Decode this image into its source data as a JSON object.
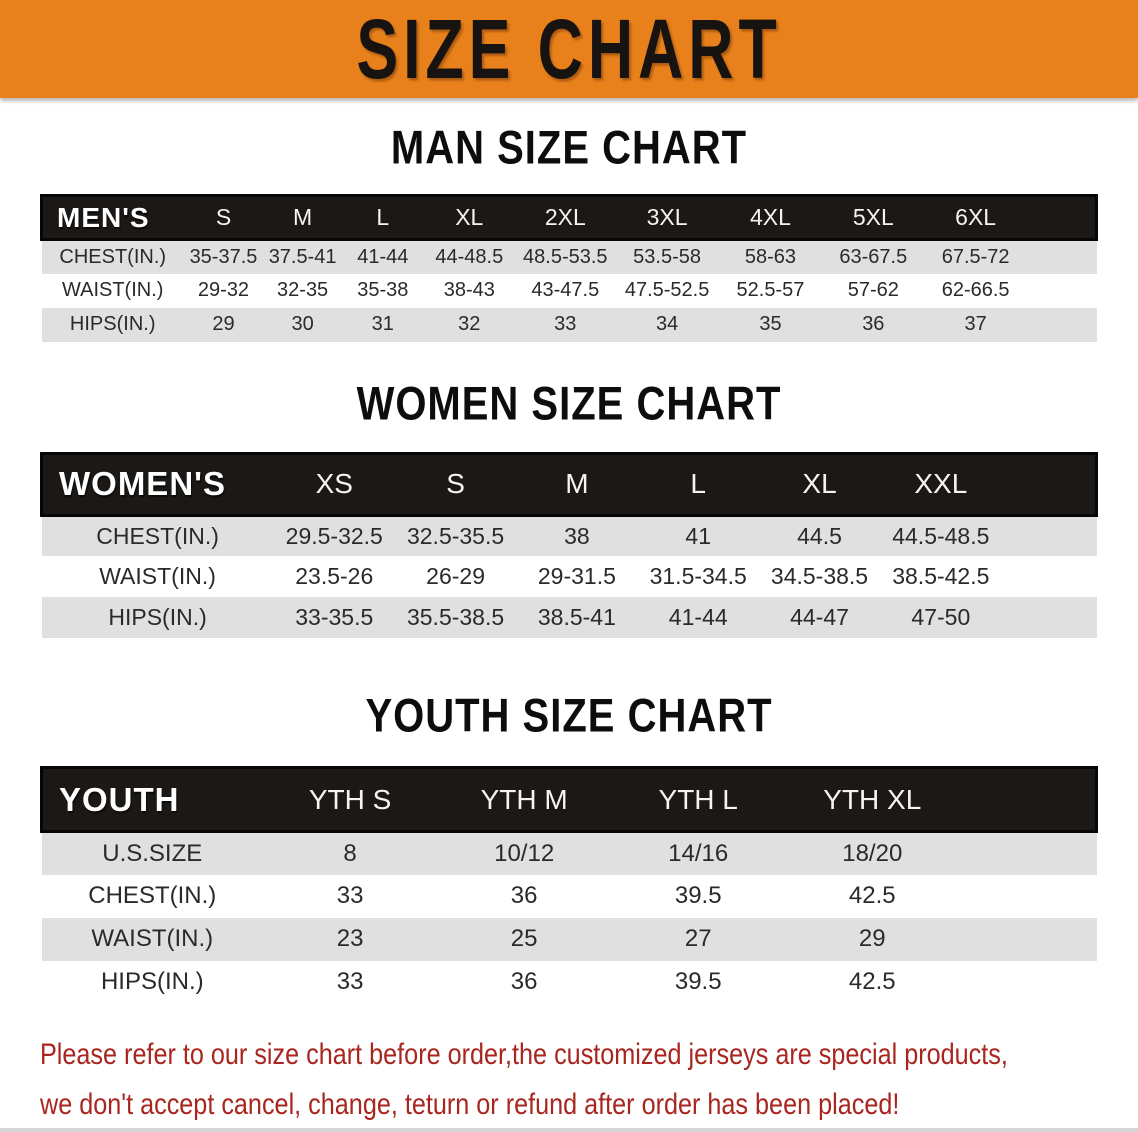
{
  "banner": {
    "title": "SIZE CHART",
    "bg_color": "#E8811B",
    "text_color": "#171310"
  },
  "sections": [
    {
      "heading": "MAN SIZE CHART",
      "table": {
        "header_label": "MEN'S",
        "columns": [
          "S",
          "M",
          "L",
          "XL",
          "2XL",
          "3XL",
          "4XL",
          "5XL",
          "6XL"
        ],
        "rows": [
          {
            "label": "CHEST(IN.)",
            "values": [
              "35-37.5",
              "37.5-41",
              "41-44",
              "44-48.5",
              "48.5-53.5",
              "53.5-58",
              "58-63",
              "63-67.5",
              "67.5-72"
            ]
          },
          {
            "label": "WAIST(IN.)",
            "values": [
              "29-32",
              "32-35",
              "35-38",
              "38-43",
              "43-47.5",
              "47.5-52.5",
              "52.5-57",
              "57-62",
              "62-66.5"
            ]
          },
          {
            "label": "HIPS(IN.)",
            "values": [
              "29",
              "30",
              "31",
              "32",
              "33",
              "34",
              "35",
              "36",
              "37"
            ]
          }
        ]
      }
    },
    {
      "heading": "WOMEN SIZE CHART",
      "table": {
        "header_label": "WOMEN'S",
        "columns": [
          "XS",
          "S",
          "M",
          "L",
          "XL",
          "XXL"
        ],
        "rows": [
          {
            "label": "CHEST(IN.)",
            "values": [
              "29.5-32.5",
              "32.5-35.5",
              "38",
              "41",
              "44.5",
              "44.5-48.5"
            ]
          },
          {
            "label": "WAIST(IN.)",
            "values": [
              "23.5-26",
              "26-29",
              "29-31.5",
              "31.5-34.5",
              "34.5-38.5",
              "38.5-42.5"
            ]
          },
          {
            "label": "HIPS(IN.)",
            "values": [
              "33-35.5",
              "35.5-38.5",
              "38.5-41",
              "41-44",
              "44-47",
              "47-50"
            ]
          }
        ]
      }
    },
    {
      "heading": "YOUTH SIZE CHART",
      "table": {
        "header_label": "YOUTH",
        "columns": [
          "YTH S",
          "YTH M",
          "YTH L",
          "YTH XL"
        ],
        "rows": [
          {
            "label": "U.S.SIZE",
            "values": [
              "8",
              "10/12",
              "14/16",
              "18/20"
            ]
          },
          {
            "label": "CHEST(IN.)",
            "values": [
              "33",
              "36",
              "39.5",
              "42.5"
            ]
          },
          {
            "label": "WAIST(IN.)",
            "values": [
              "23",
              "25",
              "27",
              "29"
            ]
          },
          {
            "label": "HIPS(IN.)",
            "values": [
              "33",
              "36",
              "39.5",
              "42.5"
            ]
          }
        ]
      }
    }
  ],
  "footer": {
    "lines": [
      "Please refer to our size chart before order,the customized jerseys are special products,",
      "we don't accept cancel, change, teturn or refund after order has been placed!"
    ],
    "text_color": "#A8261F"
  },
  "stripe_color": "#e0e0e0",
  "header_bar_color": "#1b1815"
}
